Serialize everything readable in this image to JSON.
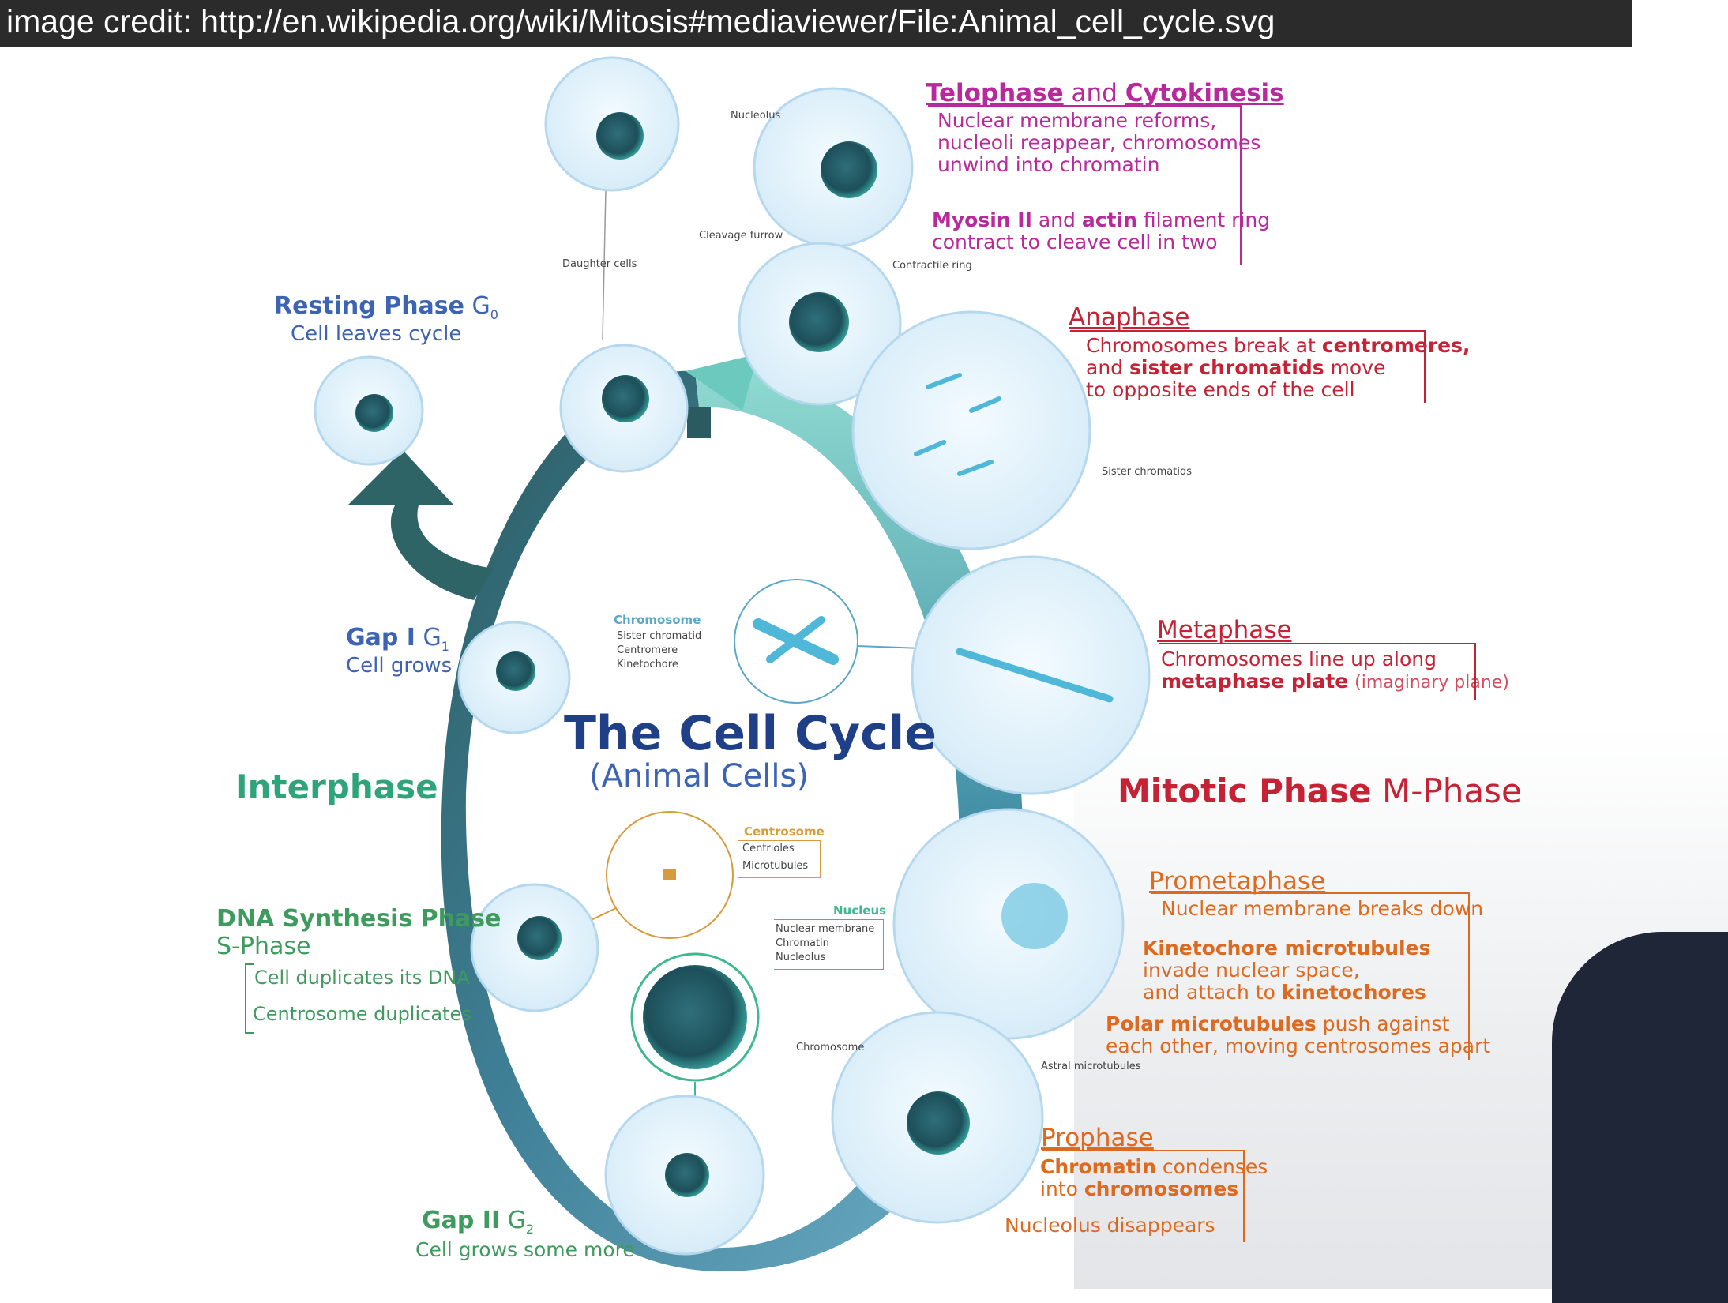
{
  "credit": "image credit: http://en.wikipedia.org/wiki/Mitosis#mediaviewer/File:Animal_cell_cycle.svg",
  "title": "The Cell Cycle",
  "subtitle": "(Animal Cells)",
  "interphase_label": "Interphase",
  "mitotic": {
    "bold": "Mitotic Phase",
    "rest": "M-Phase"
  },
  "resting": {
    "title": "Resting Phase",
    "sub": "G",
    "subscript": "0",
    "desc": "Cell leaves cycle"
  },
  "gap1": {
    "title": "Gap I",
    "sub": "G",
    "subscript": "1",
    "desc": "Cell grows"
  },
  "gap2": {
    "title": "Gap II",
    "sub": "G",
    "subscript": "2",
    "desc": "Cell grows some more"
  },
  "sphase": {
    "title": "DNA Synthesis Phase",
    "sub": "S-Phase",
    "items": [
      "Cell duplicates its DNA",
      "Centrosome duplicates"
    ]
  },
  "telophase": {
    "title_a": "Telophase",
    "and": "and",
    "title_b": "Cytokinesis",
    "lines": [
      "Nuclear membrane reforms,",
      "nucleoli reappear, chromosomes",
      "unwind into chromatin"
    ],
    "myosin_bold1": "Myosin II",
    "myosin_and": "and",
    "myosin_bold2": "actin",
    "myosin_rest": "filament ring",
    "myosin_line2": "contract to cleave cell in two"
  },
  "anaphase": {
    "title": "Anaphase",
    "line1a": "Chromosomes break at",
    "line1b": "centromeres,",
    "line2a": "and",
    "line2b": "sister chromatids",
    "line2c": "move",
    "line3": "to opposite ends of the cell"
  },
  "metaphase": {
    "title": "Metaphase",
    "line1": "Chromosomes line up along",
    "line2a": "metaphase plate",
    "line2b": "(imaginary plane)"
  },
  "prometaphase": {
    "title": "Prometaphase",
    "line1": "Nuclear membrane breaks down",
    "kin_bold": "Kinetochore microtubules",
    "kin_l2": "invade nuclear space,",
    "kin_l3a": "and attach to",
    "kin_l3b": "kinetochores",
    "polar_bold": "Polar microtubules",
    "polar_rest": "push against",
    "polar_l2": "each other, moving centrosomes apart"
  },
  "prophase": {
    "title": "Prophase",
    "l1a": "Chromatin",
    "l1b": "condenses",
    "l2a": "into",
    "l2b": "chromosomes",
    "l3": "Nucleolus disappears"
  },
  "small_labels": {
    "nucleolus_top": "Nucleolus",
    "cleavage": "Cleavage furrow",
    "contractile": "Contractile ring",
    "daughter": "Daughter cells",
    "sister": "Sister chromatids",
    "astral": "Astral microtubules",
    "chromosome": "Chromosome"
  },
  "chromosome_key": {
    "title": "Chromosome",
    "items": [
      "Sister chromatid",
      "Centromere",
      "Kinetochore"
    ]
  },
  "centrosome_key": {
    "title": "Centrosome",
    "items": [
      "Centrioles",
      "Microtubules"
    ]
  },
  "nucleus_key": {
    "title": "Nucleus",
    "items": [
      "Nuclear membrane",
      "Chromatin",
      "Nucleolus"
    ]
  },
  "colors": {
    "navy": "#1f3f86",
    "blue": "#3d63b3",
    "teal": "#2fa37a",
    "green": "#3f9a5e",
    "magenta": "#b8299c",
    "red": "#c62236",
    "orange": "#dd6a1f",
    "ring_dark": "#2c5e63",
    "ring_light": "#7fd1c8"
  }
}
